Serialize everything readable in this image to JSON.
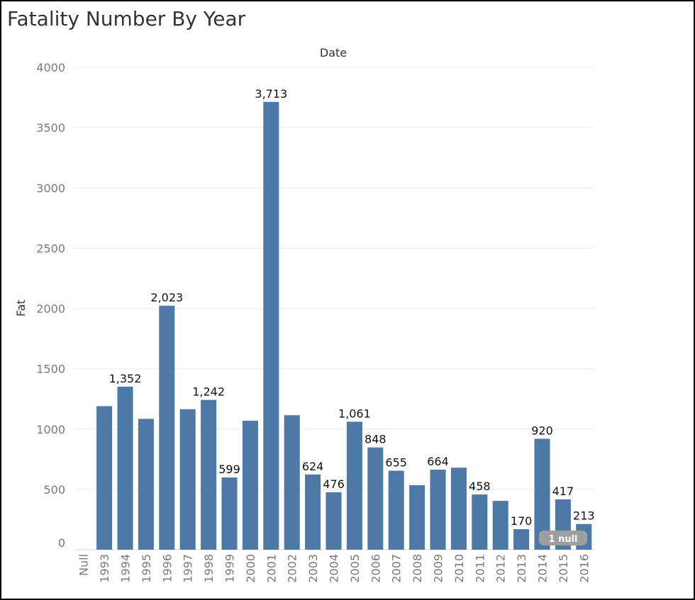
{
  "header": {
    "title": "Fatality Number By Year"
  },
  "null_indicator": {
    "label": "1 null"
  },
  "chart_data": {
    "type": "bar",
    "title": "Fatality Number By Year",
    "column_header": "Date",
    "xlabel": "",
    "ylabel": "Fat",
    "categories": [
      "Null",
      "1993",
      "1994",
      "1995",
      "1996",
      "1997",
      "1998",
      "1999",
      "2000",
      "2001",
      "2002",
      "2003",
      "2004",
      "2005",
      "2006",
      "2007",
      "2008",
      "2009",
      "2010",
      "2011",
      "2012",
      "2013",
      "2014",
      "2015",
      "2016"
    ],
    "values": [
      null,
      1190,
      1352,
      1085,
      2023,
      1165,
      1242,
      599,
      1070,
      3713,
      1115,
      624,
      476,
      1061,
      848,
      655,
      535,
      664,
      680,
      458,
      405,
      170,
      920,
      417,
      213
    ],
    "data_labels": [
      "",
      "",
      "1,352",
      "",
      "2,023",
      "",
      "1,242",
      "599",
      "",
      "3,713",
      "",
      "624",
      "476",
      "1,061",
      "848",
      "655",
      "",
      "664",
      "",
      "458",
      "",
      "170",
      "920",
      "417",
      "213"
    ],
    "ylim": [
      0,
      4000
    ],
    "yticks": [
      0,
      500,
      1000,
      1500,
      2000,
      2500,
      3000,
      3500,
      4000
    ],
    "grid": true,
    "bar_color": "#4e79a7"
  }
}
